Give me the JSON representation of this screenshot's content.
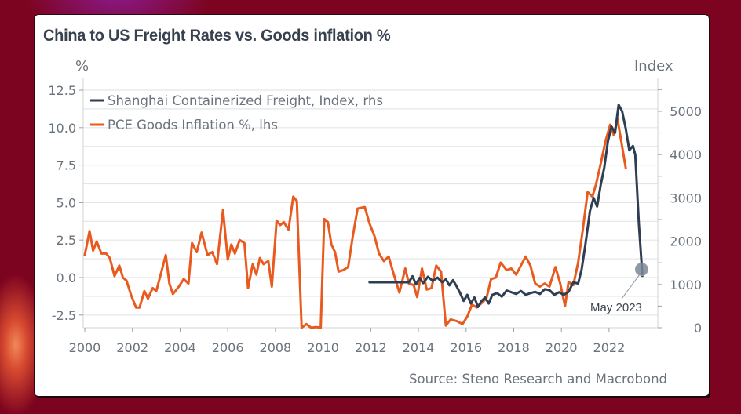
{
  "chart_data": {
    "type": "line",
    "title": "China to US Freight Rates vs. Goods inflation %",
    "left_axis": {
      "unit_label": "%",
      "range": [
        -3.3,
        13.0
      ],
      "ticks": [
        -2.5,
        0.0,
        2.5,
        5.0,
        7.5,
        10.0,
        12.5
      ],
      "tick_labels": [
        "-2.5",
        "0.0",
        "2.5",
        "5.0",
        "7.5",
        "10.0",
        "12.5"
      ]
    },
    "right_axis": {
      "unit_label": "Index",
      "range": [
        0,
        5500
      ],
      "ticks": [
        0,
        1000,
        2000,
        3000,
        4000,
        5000
      ],
      "tick_labels": [
        "0",
        "1000",
        "2000",
        "3000",
        "4000",
        "5000"
      ],
      "minor_ticks": [
        500,
        1500,
        2500,
        3500,
        4500,
        5500
      ]
    },
    "x_axis": {
      "range": [
        1999.8,
        2024.4
      ],
      "ticks": [
        2000,
        2002,
        2004,
        2006,
        2008,
        2010,
        2012,
        2014,
        2016,
        2018,
        2020,
        2022
      ],
      "tick_labels": [
        "2000",
        "2002",
        "2004",
        "2006",
        "2008",
        "2010",
        "2012",
        "2014",
        "2016",
        "2018",
        "2020",
        "2022"
      ]
    },
    "grid": "horizontal",
    "legend": "top-left",
    "series": [
      {
        "name": "Shanghai Containerized Freight, Index, rhs",
        "axis": "right",
        "color": "#2f3e52",
        "points": [
          [
            2011.95,
            1050
          ],
          [
            2013.6,
            1050
          ],
          [
            2013.75,
            1190
          ],
          [
            2013.9,
            1000
          ],
          [
            2014.05,
            1150
          ],
          [
            2014.2,
            1030
          ],
          [
            2014.4,
            1180
          ],
          [
            2014.6,
            1080
          ],
          [
            2014.8,
            1160
          ],
          [
            2015.0,
            1050
          ],
          [
            2015.15,
            1120
          ],
          [
            2015.3,
            980
          ],
          [
            2015.45,
            1100
          ],
          [
            2015.6,
            960
          ],
          [
            2015.75,
            800
          ],
          [
            2015.9,
            620
          ],
          [
            2016.05,
            760
          ],
          [
            2016.2,
            560
          ],
          [
            2016.35,
            700
          ],
          [
            2016.5,
            480
          ],
          [
            2016.65,
            620
          ],
          [
            2016.8,
            700
          ],
          [
            2016.95,
            560
          ],
          [
            2017.1,
            760
          ],
          [
            2017.3,
            800
          ],
          [
            2017.5,
            720
          ],
          [
            2017.7,
            860
          ],
          [
            2017.9,
            820
          ],
          [
            2018.1,
            780
          ],
          [
            2018.3,
            850
          ],
          [
            2018.5,
            760
          ],
          [
            2018.7,
            800
          ],
          [
            2018.9,
            830
          ],
          [
            2019.1,
            780
          ],
          [
            2019.3,
            890
          ],
          [
            2019.5,
            870
          ],
          [
            2019.7,
            760
          ],
          [
            2019.9,
            820
          ],
          [
            2020.1,
            760
          ],
          [
            2020.3,
            830
          ],
          [
            2020.5,
            1050
          ],
          [
            2020.7,
            1020
          ],
          [
            2020.85,
            1350
          ],
          [
            2021.0,
            1900
          ],
          [
            2021.2,
            2700
          ],
          [
            2021.35,
            3000
          ],
          [
            2021.5,
            2800
          ],
          [
            2021.65,
            3300
          ],
          [
            2021.8,
            3700
          ],
          [
            2021.95,
            4300
          ],
          [
            2022.1,
            4650
          ],
          [
            2022.25,
            4500
          ],
          [
            2022.4,
            5150
          ],
          [
            2022.55,
            5000
          ],
          [
            2022.7,
            4600
          ],
          [
            2022.85,
            4100
          ],
          [
            2023.0,
            4200
          ],
          [
            2023.1,
            4000
          ],
          [
            2023.25,
            2400
          ],
          [
            2023.4,
            1200
          ]
        ]
      },
      {
        "name": "PCE Goods Inflation %, lhs",
        "axis": "left",
        "color": "#e85a1e",
        "points": [
          [
            2000.0,
            1.5
          ],
          [
            2000.2,
            3.1
          ],
          [
            2000.35,
            1.8
          ],
          [
            2000.5,
            2.4
          ],
          [
            2000.7,
            1.6
          ],
          [
            2000.9,
            1.6
          ],
          [
            2001.05,
            1.3
          ],
          [
            2001.25,
            0.1
          ],
          [
            2001.45,
            0.8
          ],
          [
            2001.6,
            0.0
          ],
          [
            2001.75,
            -0.2
          ],
          [
            2001.95,
            -1.2
          ],
          [
            2002.15,
            -2.0
          ],
          [
            2002.3,
            -2.0
          ],
          [
            2002.5,
            -0.9
          ],
          [
            2002.65,
            -1.4
          ],
          [
            2002.85,
            -0.7
          ],
          [
            2003.0,
            -0.9
          ],
          [
            2003.2,
            0.3
          ],
          [
            2003.4,
            1.5
          ],
          [
            2003.55,
            -0.4
          ],
          [
            2003.7,
            -1.1
          ],
          [
            2003.95,
            -0.6
          ],
          [
            2004.15,
            -0.1
          ],
          [
            2004.35,
            -0.4
          ],
          [
            2004.5,
            2.3
          ],
          [
            2004.7,
            1.7
          ],
          [
            2004.9,
            3.0
          ],
          [
            2005.15,
            1.5
          ],
          [
            2005.35,
            1.7
          ],
          [
            2005.55,
            0.9
          ],
          [
            2005.8,
            4.5
          ],
          [
            2006.0,
            1.2
          ],
          [
            2006.15,
            2.2
          ],
          [
            2006.3,
            1.6
          ],
          [
            2006.5,
            2.5
          ],
          [
            2006.7,
            2.3
          ],
          [
            2006.85,
            -0.7
          ],
          [
            2007.05,
            0.9
          ],
          [
            2007.2,
            0.2
          ],
          [
            2007.35,
            1.3
          ],
          [
            2007.5,
            0.9
          ],
          [
            2007.7,
            1.1
          ],
          [
            2007.85,
            -0.6
          ],
          [
            2008.05,
            3.8
          ],
          [
            2008.2,
            3.5
          ],
          [
            2008.35,
            3.7
          ],
          [
            2008.55,
            3.2
          ],
          [
            2008.75,
            5.4
          ],
          [
            2008.9,
            5.1
          ],
          [
            2009.1,
            -3.4
          ],
          [
            2009.3,
            -3.1
          ],
          [
            2009.5,
            -3.5
          ],
          [
            2009.7,
            -3.3
          ],
          [
            2009.9,
            -3.4
          ],
          [
            2010.05,
            3.9
          ],
          [
            2010.2,
            3.7
          ],
          [
            2010.35,
            2.2
          ],
          [
            2010.5,
            1.7
          ],
          [
            2010.65,
            0.4
          ],
          [
            2010.85,
            0.5
          ],
          [
            2011.05,
            0.7
          ],
          [
            2011.25,
            2.8
          ],
          [
            2011.45,
            4.6
          ],
          [
            2011.75,
            4.7
          ],
          [
            2011.95,
            3.6
          ],
          [
            2012.15,
            2.8
          ],
          [
            2012.35,
            1.6
          ],
          [
            2012.55,
            1.1
          ],
          [
            2012.75,
            1.4
          ],
          [
            2012.95,
            0.3
          ],
          [
            2013.2,
            -1.0
          ],
          [
            2013.45,
            0.6
          ],
          [
            2013.6,
            -0.4
          ],
          [
            2013.8,
            -0.5
          ],
          [
            2013.95,
            -1.3
          ],
          [
            2014.15,
            0.6
          ],
          [
            2014.35,
            -0.8
          ],
          [
            2014.55,
            -0.7
          ],
          [
            2014.75,
            0.8
          ],
          [
            2014.95,
            0.4
          ],
          [
            2015.15,
            -3.2
          ],
          [
            2015.35,
            -2.8
          ],
          [
            2015.6,
            -2.9
          ],
          [
            2015.85,
            -3.1
          ],
          [
            2016.05,
            -2.6
          ],
          [
            2016.25,
            -1.8
          ],
          [
            2016.45,
            -2.0
          ],
          [
            2016.65,
            -1.7
          ],
          [
            2016.85,
            -1.4
          ],
          [
            2017.05,
            -0.1
          ],
          [
            2017.25,
            0.0
          ],
          [
            2017.45,
            1.0
          ],
          [
            2017.7,
            0.5
          ],
          [
            2017.9,
            0.6
          ],
          [
            2018.1,
            0.2
          ],
          [
            2018.3,
            0.8
          ],
          [
            2018.5,
            1.4
          ],
          [
            2018.7,
            0.8
          ],
          [
            2018.9,
            -0.4
          ],
          [
            2019.1,
            -0.6
          ],
          [
            2019.3,
            -0.4
          ],
          [
            2019.5,
            -0.6
          ],
          [
            2019.75,
            0.7
          ],
          [
            2019.95,
            -0.4
          ],
          [
            2020.15,
            -1.9
          ],
          [
            2020.3,
            -0.3
          ],
          [
            2020.5,
            -0.5
          ],
          [
            2020.7,
            1.0
          ],
          [
            2020.9,
            3.2
          ],
          [
            2021.1,
            5.7
          ],
          [
            2021.3,
            5.4
          ],
          [
            2021.45,
            6.2
          ],
          [
            2021.65,
            7.6
          ],
          [
            2021.85,
            9.1
          ],
          [
            2022.05,
            10.2
          ],
          [
            2022.2,
            9.5
          ],
          [
            2022.35,
            10.6
          ],
          [
            2022.5,
            9.2
          ],
          [
            2022.7,
            7.3
          ]
        ]
      }
    ],
    "annotations": [
      {
        "text": "May 2023",
        "target_year": 2023.4,
        "target_value": 1350,
        "axis": "right",
        "marker": "circle"
      }
    ]
  },
  "source": "Source: Steno Research and Macrobond",
  "background_color": "#7d0420"
}
